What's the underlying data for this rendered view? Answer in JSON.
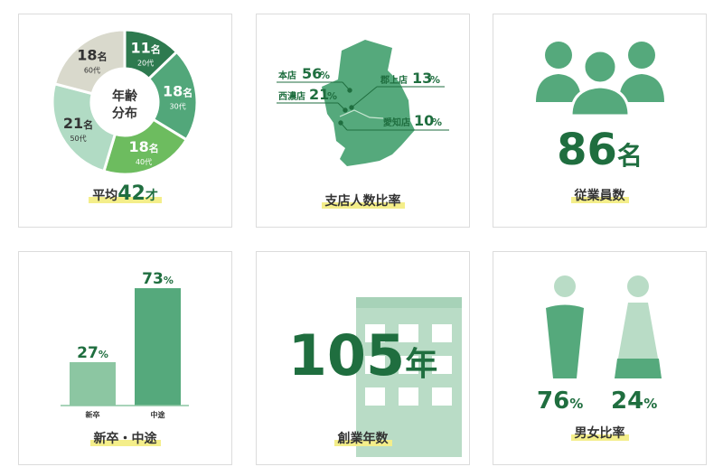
{
  "age": {
    "center_label": [
      "年齢",
      "分布"
    ],
    "segments": [
      {
        "count": "11",
        "unit": "名",
        "label": "20代",
        "value": 11,
        "color": "#2e7a4f"
      },
      {
        "count": "18",
        "unit": "名",
        "label": "30代",
        "value": 18,
        "color": "#52a77a"
      },
      {
        "count": "18",
        "unit": "名",
        "label": "40代",
        "value": 18,
        "color": "#6dbc5f"
      },
      {
        "count": "21",
        "unit": "名",
        "label": "50代",
        "value": 21,
        "color": "#b1dbc4"
      },
      {
        "count": "18",
        "unit": "名",
        "label": "60代",
        "value": 18,
        "color": "#d9d9cc"
      }
    ],
    "caption_prefix": "平均",
    "caption_value": "42",
    "caption_unit": "才"
  },
  "branches": {
    "items": [
      {
        "name": "本店",
        "value": "56",
        "unit": "%"
      },
      {
        "name": "郡上店",
        "value": "13",
        "unit": "%"
      },
      {
        "name": "西濃店",
        "value": "21",
        "unit": "%"
      },
      {
        "name": "愛知店",
        "value": "10",
        "unit": "%"
      }
    ],
    "caption": "支店人数比率"
  },
  "employees": {
    "value": "86",
    "unit": "名",
    "caption": "従業員数"
  },
  "hiring": {
    "bars": [
      {
        "label": "新卒",
        "value": 27,
        "text": "27",
        "color": "#8cc6a2"
      },
      {
        "label": "中途",
        "value": 73,
        "text": "73",
        "color": "#55a97c"
      }
    ],
    "unit": "%",
    "caption": "新卒・中途"
  },
  "founded": {
    "value": "105",
    "unit": "年",
    "caption": "創業年数"
  },
  "gender": {
    "male": "76",
    "female": "24",
    "unit": "%",
    "caption": "男女比率"
  },
  "colors": {
    "green_dark": "#1f6e3f",
    "green": "#55a97c",
    "highlight": "#f4ee8a"
  }
}
